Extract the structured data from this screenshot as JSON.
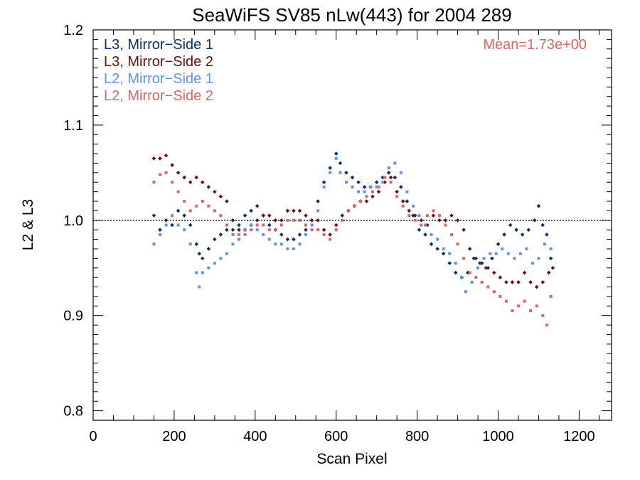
{
  "chart_data": {
    "type": "scatter",
    "title": "SeaWiFS SV85 nLw(443) for 2004 289",
    "xlabel": "Scan Pixel",
    "ylabel": "L2 & L3",
    "xlim": [
      0,
      1280
    ],
    "ylim": [
      0.79,
      1.2
    ],
    "xticks": [
      "0",
      "200",
      "400",
      "600",
      "800",
      "1000",
      "1200"
    ],
    "yticks": [
      "0.8",
      "0.9",
      "1.0",
      "1.1",
      "1.2"
    ],
    "reference_line": 1.0,
    "annotation": "Mean=1.73e+00",
    "grid": false,
    "legend_position": "top-left",
    "series": [
      {
        "name": "L3, Mirror−Side 1",
        "color": "#0b2f6b",
        "marker": "diamond",
        "points": [
          [
            150,
            1.005
          ],
          [
            165,
            0.99
          ],
          [
            180,
            1.0
          ],
          [
            195,
            0.995
          ],
          [
            210,
            1.01
          ],
          [
            225,
            1.005
          ],
          [
            240,
            0.995
          ],
          [
            255,
            0.975
          ],
          [
            262,
            0.965
          ],
          [
            270,
            0.96
          ],
          [
            285,
            0.97
          ],
          [
            300,
            0.98
          ],
          [
            315,
            0.985
          ],
          [
            330,
            0.99
          ],
          [
            345,
            0.99
          ],
          [
            360,
            0.995
          ],
          [
            375,
            1.005
          ],
          [
            390,
            1.01
          ],
          [
            405,
            1.015
          ],
          [
            420,
            1.005
          ],
          [
            435,
            0.995
          ],
          [
            450,
            0.99
          ],
          [
            465,
            0.985
          ],
          [
            480,
            0.98
          ],
          [
            495,
            0.98
          ],
          [
            510,
            0.985
          ],
          [
            525,
            0.99
          ],
          [
            540,
            1.0
          ],
          [
            555,
            1.02
          ],
          [
            570,
            1.04
          ],
          [
            585,
            1.055
          ],
          [
            600,
            1.07
          ],
          [
            610,
            1.06
          ],
          [
            625,
            1.05
          ],
          [
            640,
            1.045
          ],
          [
            655,
            1.04
          ],
          [
            670,
            1.035
          ],
          [
            685,
            1.035
          ],
          [
            700,
            1.04
          ],
          [
            715,
            1.045
          ],
          [
            730,
            1.05
          ],
          [
            745,
            1.045
          ],
          [
            760,
            1.035
          ],
          [
            775,
            1.02
          ],
          [
            790,
            1.005
          ],
          [
            805,
            0.99
          ],
          [
            820,
            0.985
          ],
          [
            835,
            0.975
          ],
          [
            850,
            0.97
          ],
          [
            865,
            0.965
          ],
          [
            880,
            0.955
          ],
          [
            895,
            0.945
          ],
          [
            910,
            0.94
          ],
          [
            925,
            0.945
          ],
          [
            940,
            0.96
          ],
          [
            955,
            0.955
          ],
          [
            970,
            0.95
          ],
          [
            985,
            0.96
          ],
          [
            1000,
            0.975
          ],
          [
            1015,
            0.985
          ],
          [
            1030,
            0.995
          ],
          [
            1045,
            0.99
          ],
          [
            1060,
            0.985
          ],
          [
            1075,
            0.99
          ],
          [
            1090,
            1.0
          ],
          [
            1100,
            1.015
          ],
          [
            1110,
            0.995
          ],
          [
            1120,
            0.985
          ],
          [
            1130,
            0.96
          ]
        ]
      },
      {
        "name": "L3, Mirror−Side 2",
        "color": "#6b0e0e",
        "marker": "diamond",
        "points": [
          [
            150,
            1.065
          ],
          [
            165,
            1.065
          ],
          [
            180,
            1.068
          ],
          [
            195,
            1.058
          ],
          [
            210,
            1.05
          ],
          [
            225,
            1.045
          ],
          [
            240,
            1.04
          ],
          [
            255,
            1.045
          ],
          [
            270,
            1.04
          ],
          [
            285,
            1.035
          ],
          [
            300,
            1.03
          ],
          [
            315,
            1.025
          ],
          [
            330,
            1.02
          ],
          [
            345,
            1.0
          ],
          [
            360,
            0.99
          ],
          [
            375,
            0.99
          ],
          [
            390,
            0.995
          ],
          [
            405,
            1.0
          ],
          [
            420,
            1.005
          ],
          [
            435,
            1.005
          ],
          [
            450,
            1.0
          ],
          [
            465,
            1.0
          ],
          [
            480,
            1.01
          ],
          [
            495,
            1.01
          ],
          [
            510,
            1.01
          ],
          [
            525,
            1.005
          ],
          [
            540,
            1.0
          ],
          [
            555,
            1.0
          ],
          [
            570,
            0.99
          ],
          [
            585,
            0.985
          ],
          [
            600,
            0.995
          ],
          [
            615,
            1.005
          ],
          [
            630,
            1.01
          ],
          [
            645,
            1.015
          ],
          [
            660,
            1.02
          ],
          [
            675,
            1.02
          ],
          [
            690,
            1.025
          ],
          [
            705,
            1.03
          ],
          [
            720,
            1.04
          ],
          [
            735,
            1.045
          ],
          [
            750,
            1.03
          ],
          [
            765,
            1.02
          ],
          [
            780,
            1.01
          ],
          [
            795,
            1.005
          ],
          [
            810,
            1.0
          ],
          [
            825,
            0.995
          ],
          [
            840,
            1.005
          ],
          [
            855,
            1.0
          ],
          [
            870,
            1.0
          ],
          [
            885,
            1.005
          ],
          [
            900,
            1.0
          ],
          [
            915,
            0.99
          ],
          [
            930,
            0.97
          ],
          [
            945,
            0.96
          ],
          [
            960,
            0.955
          ],
          [
            975,
            0.95
          ],
          [
            990,
            0.945
          ],
          [
            1005,
            0.94
          ],
          [
            1020,
            0.935
          ],
          [
            1035,
            0.935
          ],
          [
            1050,
            0.935
          ],
          [
            1065,
            0.945
          ],
          [
            1080,
            0.935
          ],
          [
            1095,
            0.93
          ],
          [
            1110,
            0.935
          ],
          [
            1125,
            0.945
          ],
          [
            1135,
            0.95
          ]
        ]
      },
      {
        "name": "L2, Mirror−Side 1",
        "color": "#5f94e6",
        "marker": "square",
        "points": [
          [
            150,
            0.975
          ],
          [
            165,
            0.985
          ],
          [
            180,
            0.995
          ],
          [
            195,
            1.005
          ],
          [
            210,
            0.995
          ],
          [
            225,
            0.99
          ],
          [
            240,
            0.975
          ],
          [
            255,
            0.945
          ],
          [
            262,
            0.93
          ],
          [
            270,
            0.945
          ],
          [
            285,
            0.95
          ],
          [
            300,
            0.955
          ],
          [
            315,
            0.96
          ],
          [
            330,
            0.965
          ],
          [
            345,
            0.975
          ],
          [
            360,
            0.985
          ],
          [
            375,
            0.99
          ],
          [
            390,
            0.995
          ],
          [
            405,
            0.99
          ],
          [
            420,
            0.985
          ],
          [
            435,
            0.98
          ],
          [
            450,
            0.975
          ],
          [
            465,
            0.975
          ],
          [
            480,
            0.97
          ],
          [
            495,
            0.97
          ],
          [
            510,
            0.975
          ],
          [
            525,
            0.985
          ],
          [
            540,
            0.995
          ],
          [
            555,
            1.01
          ],
          [
            570,
            1.035
          ],
          [
            585,
            1.05
          ],
          [
            600,
            1.065
          ],
          [
            610,
            1.05
          ],
          [
            625,
            1.04
          ],
          [
            640,
            1.035
          ],
          [
            655,
            1.03
          ],
          [
            670,
            1.03
          ],
          [
            685,
            1.035
          ],
          [
            700,
            1.035
          ],
          [
            715,
            1.04
          ],
          [
            730,
            1.055
          ],
          [
            745,
            1.06
          ],
          [
            760,
            1.05
          ],
          [
            775,
            1.03
          ],
          [
            790,
            1.015
          ],
          [
            805,
            1.005
          ],
          [
            820,
            0.995
          ],
          [
            835,
            0.985
          ],
          [
            850,
            0.98
          ],
          [
            865,
            0.97
          ],
          [
            880,
            0.965
          ],
          [
            895,
            0.955
          ],
          [
            910,
            0.94
          ],
          [
            920,
            0.925
          ],
          [
            935,
            0.935
          ],
          [
            950,
            0.95
          ],
          [
            965,
            0.96
          ],
          [
            980,
            0.965
          ],
          [
            995,
            0.965
          ],
          [
            1010,
            0.97
          ],
          [
            1025,
            0.965
          ],
          [
            1040,
            0.96
          ],
          [
            1055,
            0.965
          ],
          [
            1070,
            0.97
          ],
          [
            1085,
            0.955
          ],
          [
            1100,
            0.96
          ],
          [
            1115,
            0.975
          ],
          [
            1130,
            0.97
          ]
        ]
      },
      {
        "name": "L2, Mirror−Side 2",
        "color": "#d96666",
        "marker": "square",
        "points": [
          [
            150,
            1.04
          ],
          [
            165,
            1.048
          ],
          [
            180,
            1.05
          ],
          [
            195,
            1.04
          ],
          [
            210,
            1.03
          ],
          [
            225,
            1.02
          ],
          [
            240,
            1.01
          ],
          [
            255,
            1.015
          ],
          [
            270,
            1.02
          ],
          [
            285,
            1.015
          ],
          [
            300,
            1.01
          ],
          [
            315,
            1.005
          ],
          [
            330,
            0.995
          ],
          [
            345,
            0.985
          ],
          [
            360,
            0.98
          ],
          [
            375,
            0.985
          ],
          [
            390,
            0.99
          ],
          [
            405,
            0.995
          ],
          [
            420,
            0.995
          ],
          [
            435,
            0.99
          ],
          [
            450,
            0.99
          ],
          [
            465,
            0.995
          ],
          [
            480,
            1.0
          ],
          [
            495,
            1.0
          ],
          [
            510,
            1.0
          ],
          [
            525,
            0.995
          ],
          [
            540,
            0.99
          ],
          [
            555,
            0.99
          ],
          [
            570,
            0.985
          ],
          [
            585,
            0.98
          ],
          [
            600,
            0.99
          ],
          [
            615,
            1.0
          ],
          [
            630,
            1.01
          ],
          [
            645,
            1.015
          ],
          [
            660,
            1.02
          ],
          [
            675,
            1.025
          ],
          [
            690,
            1.03
          ],
          [
            705,
            1.035
          ],
          [
            720,
            1.045
          ],
          [
            735,
            1.04
          ],
          [
            750,
            1.025
          ],
          [
            765,
            1.015
          ],
          [
            780,
            1.005
          ],
          [
            795,
            1.0
          ],
          [
            810,
            0.995
          ],
          [
            825,
            1.005
          ],
          [
            840,
            1.01
          ],
          [
            855,
            1.005
          ],
          [
            870,
            0.995
          ],
          [
            885,
            0.985
          ],
          [
            900,
            0.975
          ],
          [
            915,
            0.96
          ],
          [
            930,
            0.945
          ],
          [
            945,
            0.94
          ],
          [
            960,
            0.935
          ],
          [
            975,
            0.93
          ],
          [
            990,
            0.925
          ],
          [
            1005,
            0.92
          ],
          [
            1020,
            0.915
          ],
          [
            1035,
            0.905
          ],
          [
            1050,
            0.91
          ],
          [
            1065,
            0.915
          ],
          [
            1080,
            0.905
          ],
          [
            1095,
            0.91
          ],
          [
            1110,
            0.9
          ],
          [
            1120,
            0.89
          ],
          [
            1130,
            0.92
          ]
        ]
      }
    ]
  }
}
